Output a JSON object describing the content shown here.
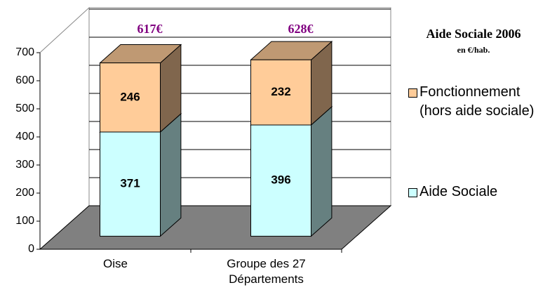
{
  "chart_data": {
    "type": "bar3d_stacked",
    "title": "Aide Sociale 2006",
    "subtitle": "en €/hab.",
    "categories": [
      "Oise",
      "Groupe des 27 Départements"
    ],
    "series": [
      {
        "name": "Aide Sociale",
        "color": "#ccffff",
        "values": [
          371,
          396
        ]
      },
      {
        "name": "Fonctionnement (hors aide sociale)",
        "color": "#ffcc99",
        "values": [
          246,
          232
        ]
      }
    ],
    "totals": {
      "values": [
        617,
        628
      ],
      "value_labels": [
        "617€",
        "628€"
      ],
      "color": "#800080"
    },
    "ylim": [
      0,
      700
    ],
    "yticks": [
      0,
      100,
      200,
      300,
      400,
      500,
      600,
      700
    ],
    "grid": true,
    "legend": "right"
  }
}
